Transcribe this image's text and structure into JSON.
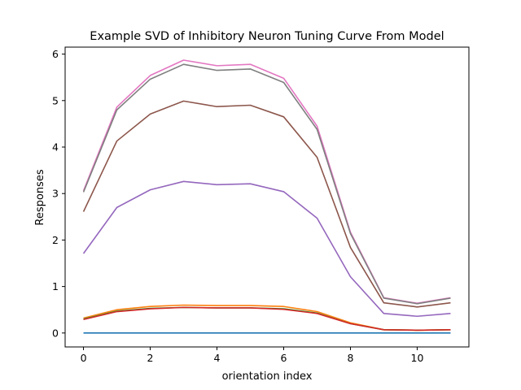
{
  "chart_data": {
    "type": "line",
    "title": "Example SVD of Inhibitory Neuron Tuning Curve From Model",
    "xlabel": "orientation index",
    "ylabel": "Responses",
    "xlim": [
      -0.55,
      11.55
    ],
    "ylim": [
      -0.3,
      6.15
    ],
    "grid": false,
    "legend": "none",
    "x": [
      0,
      1,
      2,
      3,
      4,
      5,
      6,
      7,
      8,
      9,
      10,
      11
    ],
    "xticks": [
      0,
      2,
      4,
      6,
      8,
      10
    ],
    "yticks": [
      0,
      1,
      2,
      3,
      4,
      5,
      6
    ],
    "series": [
      {
        "color": "#1f77b4",
        "values": [
          0.0,
          0.0,
          0.0,
          0.0,
          0.0,
          0.0,
          0.0,
          0.0,
          0.0,
          0.0,
          0.0,
          0.0
        ]
      },
      {
        "color": "#ff7f0e",
        "values": [
          0.32,
          0.5,
          0.57,
          0.6,
          0.59,
          0.59,
          0.57,
          0.46,
          0.22,
          0.07,
          0.06,
          0.07
        ]
      },
      {
        "color": "#2ca02c",
        "values": [
          0.3,
          0.47,
          0.53,
          0.55,
          0.54,
          0.54,
          0.52,
          0.43,
          0.2,
          0.07,
          0.06,
          0.07
        ]
      },
      {
        "color": "#d62728",
        "values": [
          0.29,
          0.46,
          0.52,
          0.55,
          0.54,
          0.54,
          0.51,
          0.42,
          0.2,
          0.07,
          0.06,
          0.07
        ]
      },
      {
        "color": "#9467bd",
        "values": [
          1.71,
          2.7,
          3.08,
          3.26,
          3.19,
          3.21,
          3.04,
          2.47,
          1.21,
          0.42,
          0.36,
          0.42
        ]
      },
      {
        "color": "#8c564b",
        "values": [
          2.61,
          4.13,
          4.71,
          4.99,
          4.87,
          4.9,
          4.65,
          3.78,
          1.84,
          0.65,
          0.56,
          0.65
        ]
      },
      {
        "color": "#e377c2",
        "values": [
          3.06,
          4.86,
          5.54,
          5.87,
          5.75,
          5.78,
          5.48,
          4.45,
          2.17,
          0.76,
          0.64,
          0.76
        ]
      },
      {
        "color": "#7f7f7f",
        "values": [
          3.03,
          4.8,
          5.46,
          5.78,
          5.65,
          5.68,
          5.39,
          4.38,
          2.14,
          0.75,
          0.63,
          0.75
        ]
      }
    ]
  }
}
